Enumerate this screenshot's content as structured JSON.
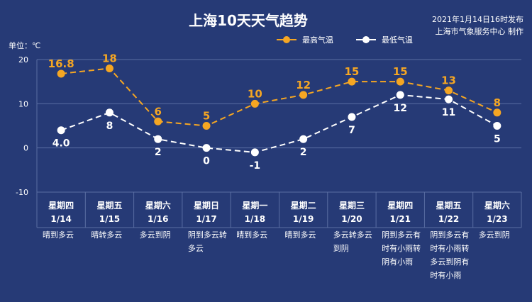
{
  "header": {
    "title": "上海10天天气趋势",
    "issued": "2021年1月14日16时发布",
    "source": "上海市气象服务中心 制作",
    "unit": "单位：℃"
  },
  "colors": {
    "background": "#263a76",
    "high": "#f5a623",
    "low": "#ffffff",
    "grid": "#5a6ea3"
  },
  "chart_data": {
    "type": "line",
    "title": "上海10天天气趋势",
    "ylabel": "单位：℃",
    "ylim": [
      -10,
      20
    ],
    "yticks": [
      -10,
      0,
      10,
      20
    ],
    "legend_position": "top-right",
    "categories": [
      {
        "weekday": "星期四",
        "date": "1/14",
        "weather": [
          "晴到多云"
        ]
      },
      {
        "weekday": "星期五",
        "date": "1/15",
        "weather": [
          "晴转多云"
        ]
      },
      {
        "weekday": "星期六",
        "date": "1/16",
        "weather": [
          "多云到阴"
        ]
      },
      {
        "weekday": "星期日",
        "date": "1/17",
        "weather": [
          "阴到多云转",
          "多云"
        ]
      },
      {
        "weekday": "星期一",
        "date": "1/18",
        "weather": [
          "晴到多云"
        ]
      },
      {
        "weekday": "星期二",
        "date": "1/19",
        "weather": [
          "晴到多云"
        ]
      },
      {
        "weekday": "星期三",
        "date": "1/20",
        "weather": [
          "多云转多云",
          "到阴"
        ]
      },
      {
        "weekday": "星期四",
        "date": "1/21",
        "weather": [
          "阴到多云有",
          "时有小雨转",
          "阴有小雨"
        ]
      },
      {
        "weekday": "星期五",
        "date": "1/22",
        "weather": [
          "阴到多云有",
          "时有小雨转",
          "多云到阴有",
          "时有小雨"
        ]
      },
      {
        "weekday": "星期六",
        "date": "1/23",
        "weather": [
          "多云到阴"
        ]
      }
    ],
    "series": [
      {
        "name": "最高气温",
        "values": [
          16.8,
          18,
          6,
          5,
          10,
          12,
          15,
          15,
          13,
          8
        ],
        "labels": [
          "16.8",
          "18",
          "6",
          "5",
          "10",
          "12",
          "15",
          "15",
          "13",
          "8"
        ]
      },
      {
        "name": "最低气温",
        "values": [
          4.0,
          8,
          2,
          0,
          -1,
          2,
          7,
          12,
          11,
          5
        ],
        "labels": [
          "4.0",
          "8",
          "2",
          "0",
          "-1",
          "2",
          "7",
          "12",
          "11",
          "5"
        ]
      }
    ]
  }
}
